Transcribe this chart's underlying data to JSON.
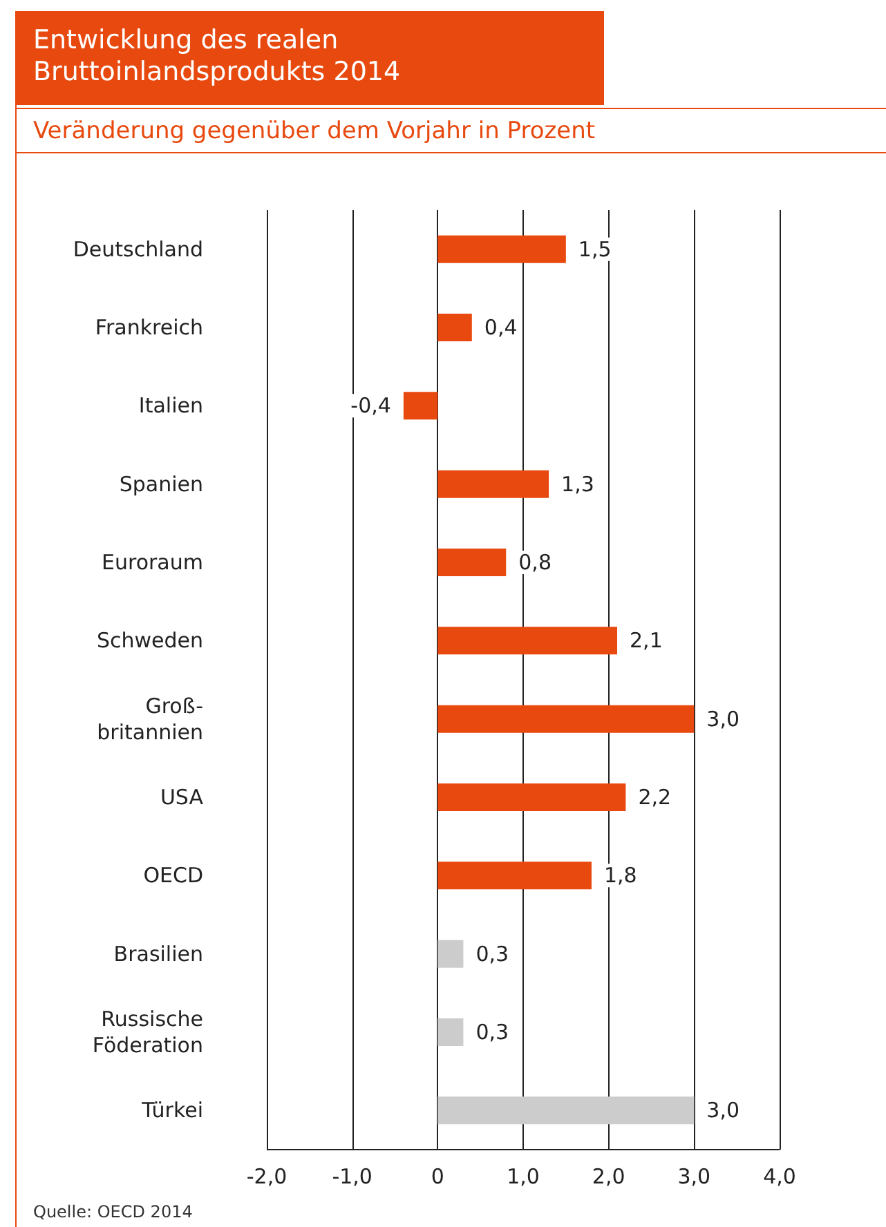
{
  "chart_data": {
    "type": "bar",
    "orientation": "horizontal",
    "title": "Entwicklung des realen\nBruttoinlandsprodukts 2014",
    "subtitle": "Veränderung gegenüber dem Vorjahr in Prozent",
    "categories": [
      "Deutschland",
      "Frankreich",
      "Italien",
      "Spanien",
      "Euroraum",
      "Schweden",
      "Groß-\nbritannien",
      "USA",
      "OECD",
      "Brasilien",
      "Russische\nFöderation",
      "Türkei"
    ],
    "values": [
      1.5,
      0.4,
      -0.4,
      1.3,
      0.8,
      2.1,
      3.0,
      2.2,
      1.8,
      0.3,
      0.3,
      3.0
    ],
    "value_labels": [
      "1,5",
      "0,4",
      "-0,4",
      "1,3",
      "0,8",
      "2,1",
      "3,0",
      "2,2",
      "1,8",
      "0,3",
      "0,3",
      "3,0"
    ],
    "colors": [
      "#e8490f",
      "#e8490f",
      "#e8490f",
      "#e8490f",
      "#e8490f",
      "#e8490f",
      "#e8490f",
      "#e8490f",
      "#e8490f",
      "#cccccc",
      "#cccccc",
      "#cccccc"
    ],
    "xlim": [
      -2,
      4
    ],
    "xticks": [
      {
        "value": -2,
        "label": "-2,0"
      },
      {
        "value": -1,
        "label": "-1,0"
      },
      {
        "value": 0,
        "label": "0"
      },
      {
        "value": 1,
        "label": "1,0"
      },
      {
        "value": 2,
        "label": "2,0"
      },
      {
        "value": 3,
        "label": "3,0"
      },
      {
        "value": 4,
        "label": "4,0"
      }
    ],
    "grid": "x",
    "annotations": [
      "Quelle: OECD 2014"
    ]
  }
}
